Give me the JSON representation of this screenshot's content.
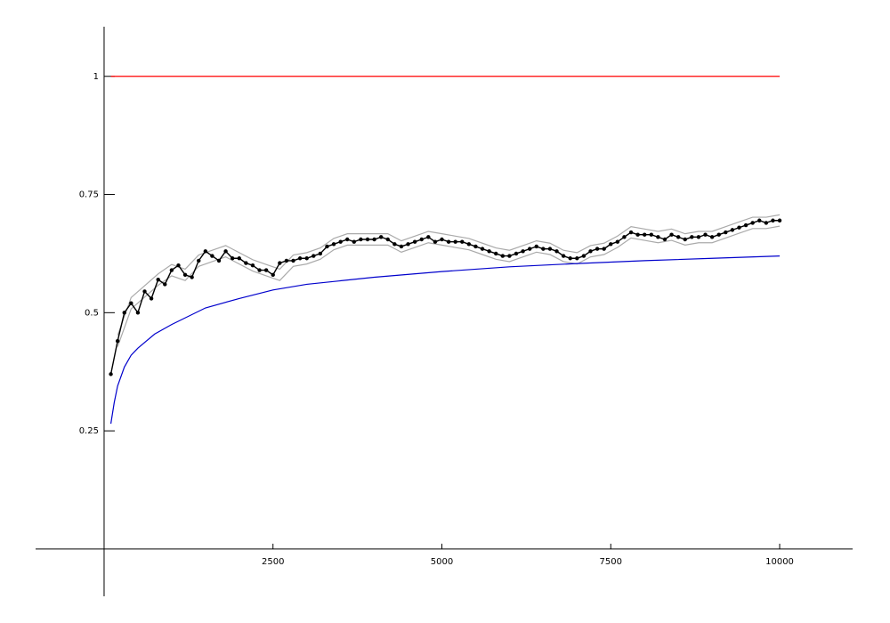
{
  "chart_data": {
    "type": "line",
    "xlim": [
      -1014,
      11080
    ],
    "ylim": [
      -0.1,
      1.105
    ],
    "xticks": [
      2500,
      5000,
      7500,
      10000
    ],
    "yticks": [
      0.25,
      0.5,
      0.75,
      1
    ],
    "series": [
      {
        "color": "#aaaaaa",
        "marker": false,
        "x": [
          200,
          400,
          600,
          800,
          1000,
          1200,
          1400,
          1600,
          1800,
          2000,
          2200,
          2400,
          2600,
          2800,
          3000,
          3200,
          3400,
          3600,
          3800,
          4000,
          4200,
          4400,
          4600,
          4800,
          5000,
          5200,
          5400,
          5600,
          5800,
          6000,
          6200,
          6400,
          6600,
          6800,
          7000,
          7200,
          7400,
          7600,
          7800,
          8000,
          8200,
          8400,
          8600,
          8800,
          9000,
          9200,
          9400,
          9600,
          9800,
          10000
        ],
        "values": [
          0.452,
          0.532,
          0.557,
          0.582,
          0.602,
          0.592,
          0.622,
          0.632,
          0.642,
          0.627,
          0.612,
          0.602,
          0.592,
          0.622,
          0.627,
          0.637,
          0.657,
          0.667,
          0.667,
          0.667,
          0.667,
          0.652,
          0.662,
          0.672,
          0.667,
          0.662,
          0.657,
          0.647,
          0.637,
          0.632,
          0.642,
          0.652,
          0.647,
          0.632,
          0.627,
          0.642,
          0.647,
          0.662,
          0.682,
          0.677,
          0.672,
          0.677,
          0.667,
          0.672,
          0.672,
          0.682,
          0.692,
          0.702,
          0.702,
          0.707
        ]
      },
      {
        "color": "#aaaaaa",
        "marker": false,
        "x": [
          200,
          400,
          600,
          800,
          1000,
          1200,
          1400,
          1600,
          1800,
          2000,
          2200,
          2400,
          2600,
          2800,
          3000,
          3200,
          3400,
          3600,
          3800,
          4000,
          4200,
          4400,
          4600,
          4800,
          5000,
          5200,
          5400,
          5600,
          5800,
          6000,
          6200,
          6400,
          6600,
          6800,
          7000,
          7200,
          7400,
          7600,
          7800,
          8000,
          8200,
          8400,
          8600,
          8800,
          9000,
          9200,
          9400,
          9600,
          9800,
          10000
        ],
        "values": [
          0.428,
          0.508,
          0.533,
          0.558,
          0.578,
          0.568,
          0.598,
          0.608,
          0.618,
          0.603,
          0.588,
          0.578,
          0.568,
          0.598,
          0.603,
          0.613,
          0.633,
          0.643,
          0.643,
          0.643,
          0.643,
          0.628,
          0.638,
          0.648,
          0.643,
          0.638,
          0.633,
          0.623,
          0.613,
          0.608,
          0.618,
          0.628,
          0.623,
          0.608,
          0.603,
          0.618,
          0.623,
          0.638,
          0.658,
          0.653,
          0.648,
          0.653,
          0.643,
          0.648,
          0.648,
          0.658,
          0.668,
          0.678,
          0.678,
          0.683
        ]
      },
      {
        "color": "#000000",
        "marker": true,
        "x": [
          100,
          200,
          300,
          400,
          500,
          600,
          700,
          800,
          900,
          1000,
          1100,
          1200,
          1300,
          1400,
          1500,
          1600,
          1700,
          1800,
          1900,
          2000,
          2100,
          2200,
          2300,
          2400,
          2500,
          2600,
          2700,
          2800,
          2900,
          3000,
          3100,
          3200,
          3300,
          3400,
          3500,
          3600,
          3700,
          3800,
          3900,
          4000,
          4100,
          4200,
          4300,
          4400,
          4500,
          4600,
          4700,
          4800,
          4900,
          5000,
          5100,
          5200,
          5300,
          5400,
          5500,
          5600,
          5700,
          5800,
          5900,
          6000,
          6100,
          6200,
          6300,
          6400,
          6500,
          6600,
          6700,
          6800,
          6900,
          7000,
          7100,
          7200,
          7300,
          7400,
          7500,
          7600,
          7700,
          7800,
          7900,
          8000,
          8100,
          8200,
          8300,
          8400,
          8500,
          8600,
          8700,
          8800,
          8900,
          9000,
          9100,
          9200,
          9300,
          9400,
          9500,
          9600,
          9700,
          9800,
          9900,
          10000
        ],
        "values": [
          0.37,
          0.44,
          0.5,
          0.52,
          0.5,
          0.545,
          0.53,
          0.57,
          0.56,
          0.59,
          0.6,
          0.58,
          0.575,
          0.61,
          0.63,
          0.62,
          0.61,
          0.63,
          0.615,
          0.615,
          0.605,
          0.6,
          0.59,
          0.59,
          0.58,
          0.605,
          0.61,
          0.61,
          0.615,
          0.615,
          0.62,
          0.625,
          0.64,
          0.645,
          0.65,
          0.655,
          0.65,
          0.655,
          0.655,
          0.655,
          0.66,
          0.655,
          0.645,
          0.64,
          0.645,
          0.65,
          0.655,
          0.66,
          0.65,
          0.655,
          0.65,
          0.65,
          0.65,
          0.645,
          0.64,
          0.635,
          0.63,
          0.625,
          0.62,
          0.62,
          0.625,
          0.63,
          0.635,
          0.64,
          0.635,
          0.635,
          0.63,
          0.62,
          0.615,
          0.615,
          0.62,
          0.63,
          0.635,
          0.635,
          0.645,
          0.65,
          0.66,
          0.67,
          0.665,
          0.665,
          0.665,
          0.66,
          0.655,
          0.665,
          0.66,
          0.655,
          0.66,
          0.66,
          0.665,
          0.66,
          0.665,
          0.67,
          0.675,
          0.68,
          0.685,
          0.69,
          0.695,
          0.69,
          0.695,
          0.695
        ]
      },
      {
        "color": "#0000cc",
        "marker": false,
        "x": [
          100,
          150,
          200,
          300,
          400,
          500,
          750,
          1000,
          1500,
          2000,
          2500,
          3000,
          4000,
          5000,
          6000,
          7000,
          8000,
          9000,
          10000
        ],
        "values": [
          0.265,
          0.31,
          0.345,
          0.385,
          0.41,
          0.425,
          0.455,
          0.475,
          0.51,
          0.53,
          0.548,
          0.56,
          0.575,
          0.587,
          0.597,
          0.604,
          0.61,
          0.615,
          0.62
        ]
      },
      {
        "color": "#ff0000",
        "marker": false,
        "x": [
          100,
          10000
        ],
        "values": [
          1,
          1
        ]
      }
    ]
  }
}
